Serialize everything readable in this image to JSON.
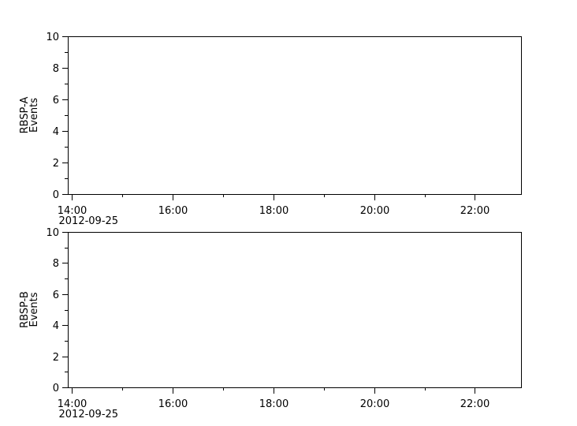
{
  "page": {
    "background_color": "#ffffff",
    "foreground_color": "#000000"
  },
  "chart_data": [
    {
      "type": "line",
      "id": "rbsp-a",
      "title": "",
      "xlabel": "",
      "ylabel": "RBSP-A Events",
      "ylabel_lines": [
        "RBSP-A",
        "Events"
      ],
      "ylim": [
        0,
        10
      ],
      "y_major_ticks": [
        {
          "value": 0,
          "label": "0"
        },
        {
          "value": 2,
          "label": "2"
        },
        {
          "value": 4,
          "label": "4"
        },
        {
          "value": 6,
          "label": "6"
        },
        {
          "value": 8,
          "label": "8"
        },
        {
          "value": 10,
          "label": "10"
        }
      ],
      "y_minor_values": [
        1,
        3,
        5,
        7,
        9
      ],
      "x_range": [
        "13:55",
        "22:55"
      ],
      "x_date_label": "2012-09-25",
      "x_major_ticks": [
        {
          "time": "14:00",
          "label": "14:00"
        },
        {
          "time": "16:00",
          "label": "16:00"
        },
        {
          "time": "18:00",
          "label": "18:00"
        },
        {
          "time": "20:00",
          "label": "20:00"
        },
        {
          "time": "22:00",
          "label": "22:00"
        }
      ],
      "x_minor_times": [
        "15:00",
        "17:00",
        "19:00",
        "21:00",
        "23:00"
      ],
      "grid": false,
      "legend": null,
      "series": []
    },
    {
      "type": "line",
      "id": "rbsp-b",
      "title": "",
      "xlabel": "",
      "ylabel": "RBSP-B Events",
      "ylabel_lines": [
        "RBSP-B",
        "Events"
      ],
      "ylim": [
        0,
        10
      ],
      "y_major_ticks": [
        {
          "value": 0,
          "label": "0"
        },
        {
          "value": 2,
          "label": "2"
        },
        {
          "value": 4,
          "label": "4"
        },
        {
          "value": 6,
          "label": "6"
        },
        {
          "value": 8,
          "label": "8"
        },
        {
          "value": 10,
          "label": "10"
        }
      ],
      "y_minor_values": [
        1,
        3,
        5,
        7,
        9
      ],
      "x_range": [
        "13:55",
        "22:55"
      ],
      "x_date_label": "2012-09-25",
      "x_major_ticks": [
        {
          "time": "14:00",
          "label": "14:00"
        },
        {
          "time": "16:00",
          "label": "16:00"
        },
        {
          "time": "18:00",
          "label": "18:00"
        },
        {
          "time": "20:00",
          "label": "20:00"
        },
        {
          "time": "22:00",
          "label": "22:00"
        }
      ],
      "x_minor_times": [
        "15:00",
        "17:00",
        "19:00",
        "21:00",
        "23:00"
      ],
      "grid": false,
      "legend": null,
      "series": []
    }
  ]
}
